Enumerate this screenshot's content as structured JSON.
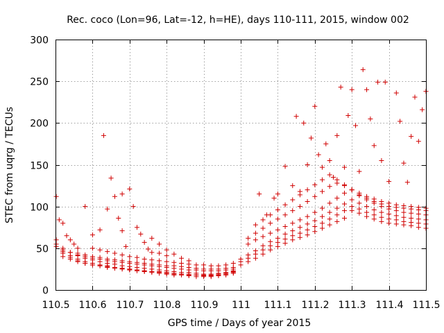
{
  "chart_data": {
    "type": "scatter",
    "title": "Rec. coco (Lon=96, Lat=-12, h=HE), days 110-111, 2015, window 002",
    "xlabel": "GPS time / Days of year 2015",
    "ylabel": "STEC from uqrg / TECUs",
    "xlim": [
      110.5,
      111.5
    ],
    "ylim": [
      0,
      300
    ],
    "grid": true,
    "marker": "plus",
    "series_color": "#d00000",
    "x_ticks": [
      "110.5",
      "110.6",
      "110.7",
      "110.8",
      "110.9",
      "111",
      "111.1",
      "111.2",
      "111.3",
      "111.4",
      "111.5"
    ],
    "y_ticks": [
      "0",
      "50",
      "100",
      "150",
      "200",
      "250",
      "300"
    ],
    "tracks": [
      {
        "x": [
          110.502,
          110.52,
          110.54,
          110.56,
          110.58,
          110.6,
          110.62,
          110.64,
          110.66,
          110.68,
          110.7,
          110.72,
          110.74,
          110.76,
          110.78,
          110.8,
          110.82,
          110.84,
          110.86,
          110.88,
          110.9,
          110.92,
          110.94,
          110.96,
          110.98
        ],
        "y": [
          60,
          50,
          45,
          41,
          38,
          36,
          34,
          32,
          31,
          29,
          28,
          27,
          26,
          25,
          24,
          23,
          22,
          21,
          21,
          20,
          19,
          19,
          20,
          21,
          23
        ]
      },
      {
        "x": [
          110.502,
          110.52,
          110.54,
          110.56,
          110.58,
          110.6,
          110.62,
          110.64,
          110.66,
          110.68,
          110.7,
          110.72,
          110.74,
          110.76,
          110.78,
          110.8,
          110.82,
          110.84,
          110.86,
          110.88,
          110.9,
          110.92,
          110.94,
          110.96,
          110.98
        ],
        "y": [
          55,
          46,
          41,
          37,
          34,
          32,
          30,
          29,
          27,
          26,
          25,
          24,
          23,
          22,
          21,
          20,
          19,
          19,
          18,
          18,
          17,
          17,
          18,
          19,
          21
        ]
      },
      {
        "x": [
          110.502,
          110.52,
          110.54,
          110.56,
          110.58,
          110.6,
          110.62,
          110.64,
          110.66,
          110.68,
          110.7,
          110.72,
          110.74,
          110.76,
          110.78,
          110.8,
          110.82,
          110.84,
          110.86,
          110.88,
          110.9,
          110.92,
          110.94,
          110.96,
          110.98
        ],
        "y": [
          52,
          44,
          39,
          35,
          32,
          30,
          29,
          27,
          26,
          25,
          24,
          23,
          22,
          21,
          20,
          19,
          18,
          18,
          17,
          16,
          16,
          16,
          17,
          18,
          20
        ]
      },
      {
        "x": [
          110.52,
          110.54,
          110.56,
          110.58,
          110.6,
          110.62,
          110.64,
          110.66,
          110.68,
          110.7,
          110.72,
          110.74,
          110.76,
          110.78,
          110.8,
          110.82,
          110.84,
          110.86,
          110.88,
          110.9,
          110.92,
          110.94,
          110.96,
          110.98
        ],
        "y": [
          40,
          37,
          34,
          32,
          30,
          29,
          28,
          27,
          26,
          25,
          24,
          23,
          22,
          22,
          21,
          20,
          19,
          19,
          18,
          18,
          18,
          19,
          20,
          22
        ]
      },
      {
        "x": [
          110.52,
          110.54,
          110.56,
          110.58,
          110.6,
          110.62,
          110.64,
          110.66,
          110.68,
          110.7,
          110.72,
          110.74,
          110.76,
          110.78,
          110.8,
          110.82,
          110.84,
          110.86,
          110.88,
          110.9,
          110.92,
          110.94,
          110.96,
          110.98
        ],
        "y": [
          48,
          45,
          42,
          40,
          38,
          37,
          35,
          34,
          33,
          32,
          31,
          30,
          29,
          28,
          27,
          26,
          25,
          24,
          24,
          23,
          23,
          23,
          24,
          25
        ]
      },
      {
        "x": [
          110.56,
          110.58,
          110.6,
          110.62,
          110.64,
          110.66,
          110.68,
          110.7,
          110.72,
          110.74,
          110.76,
          110.78,
          110.8,
          110.82,
          110.84,
          110.86,
          110.88,
          110.9,
          110.92,
          110.94,
          110.96,
          110.98
        ],
        "y": [
          44,
          42,
          40,
          39,
          37,
          36,
          35,
          34,
          33,
          32,
          31,
          30,
          29,
          29,
          28,
          27,
          26,
          25,
          25,
          25,
          26,
          27
        ]
      },
      {
        "x": [
          110.6,
          110.62,
          110.64,
          110.66,
          110.68,
          110.7,
          110.72,
          110.74,
          110.76,
          110.78,
          110.8,
          110.82,
          110.84,
          110.86,
          110.88,
          110.9,
          110.92,
          110.94,
          110.96,
          110.98
        ],
        "y": [
          50,
          48,
          46,
          44,
          42,
          40,
          39,
          37,
          36,
          35,
          34,
          33,
          32,
          31,
          30,
          30,
          29,
          29,
          30,
          32
        ]
      },
      {
        "x": [
          110.502,
          110.51,
          110.52,
          110.53,
          110.54,
          110.55,
          110.56
        ],
        "y": [
          112,
          84,
          80,
          65,
          60,
          55,
          50
        ]
      },
      {
        "x": [
          110.58,
          110.6,
          110.62,
          110.63,
          110.64,
          110.65,
          110.66,
          110.67,
          110.68
        ],
        "y": [
          100,
          66,
          72,
          185,
          97,
          134,
          112,
          86,
          71
        ]
      },
      {
        "x": [
          110.68,
          110.69,
          110.7,
          110.71,
          110.72,
          110.73,
          110.74,
          110.75,
          110.76,
          110.78,
          110.8
        ],
        "y": [
          115,
          52,
          121,
          100,
          75,
          67,
          57,
          49,
          45,
          44,
          41
        ]
      },
      {
        "x": [
          110.76,
          110.78,
          110.8,
          110.82,
          110.84,
          110.86
        ],
        "y": [
          62,
          55,
          48,
          43,
          38,
          35
        ]
      },
      {
        "x": [
          111.0,
          111.02,
          111.04,
          111.06,
          111.08,
          111.1,
          111.12,
          111.14,
          111.16,
          111.18,
          111.2,
          111.22,
          111.24,
          111.26,
          111.28,
          111.3,
          111.32,
          111.34,
          111.36,
          111.38,
          111.4,
          111.42,
          111.44,
          111.46,
          111.48,
          111.5
        ],
        "y": [
          30,
          34,
          38,
          43,
          48,
          52,
          56,
          60,
          63,
          66,
          70,
          74,
          78,
          82,
          86,
          95,
          92,
          88,
          85,
          82,
          80,
          79,
          78,
          77,
          75,
          74
        ]
      },
      {
        "x": [
          111.0,
          111.02,
          111.04,
          111.06,
          111.08,
          111.1,
          111.12,
          111.14,
          111.16,
          111.18,
          111.2,
          111.22,
          111.24,
          111.26,
          111.28,
          111.3,
          111.32,
          111.34,
          111.36,
          111.38,
          111.4,
          111.42,
          111.44,
          111.46,
          111.48,
          111.5
        ],
        "y": [
          34,
          38,
          43,
          48,
          53,
          57,
          61,
          65,
          68,
          72,
          76,
          80,
          85,
          90,
          95,
          100,
          97,
          93,
          90,
          87,
          85,
          84,
          82,
          81,
          80,
          79
        ]
      },
      {
        "x": [
          111.0,
          111.02,
          111.04,
          111.06,
          111.08,
          111.1,
          111.12,
          111.14,
          111.16,
          111.18,
          111.2,
          111.22,
          111.24,
          111.26,
          111.28,
          111.3,
          111.32,
          111.34,
          111.36,
          111.38,
          111.4,
          111.42,
          111.44,
          111.46,
          111.48,
          111.5
        ],
        "y": [
          37,
          42,
          47,
          53,
          58,
          62,
          67,
          71,
          75,
          79,
          83,
          88,
          93,
          98,
          103,
          108,
          104,
          100,
          96,
          93,
          91,
          89,
          87,
          86,
          85,
          84
        ]
      },
      {
        "x": [
          111.02,
          111.04,
          111.06,
          111.08,
          111.1,
          111.12,
          111.14,
          111.16,
          111.18,
          111.2,
          111.22,
          111.24,
          111.26,
          111.28,
          111.3,
          111.32,
          111.34,
          111.36,
          111.38,
          111.4,
          111.42,
          111.44,
          111.46,
          111.48,
          111.5
        ],
        "y": [
          55,
          60,
          64,
          68,
          72,
          76,
          80,
          84,
          88,
          93,
          98,
          104,
          110,
          116,
          120,
          113,
          108,
          104,
          100,
          97,
          95,
          93,
          92,
          91,
          90
        ]
      },
      {
        "x": [
          111.02,
          111.04,
          111.06,
          111.08,
          111.1,
          111.12,
          111.14,
          111.16,
          111.18,
          111.2,
          111.22,
          111.24,
          111.26,
          111.28,
          111.3,
          111.32,
          111.34,
          111.36,
          111.38,
          111.4,
          111.42,
          111.44,
          111.46,
          111.48,
          111.5
        ],
        "y": [
          62,
          68,
          74,
          80,
          85,
          90,
          95,
          100,
          106,
          112,
          118,
          124,
          128,
          125,
          120,
          114,
          110,
          106,
          103,
          100,
          99,
          98,
          97,
          96,
          95
        ]
      },
      {
        "x": [
          111.04,
          111.06,
          111.08,
          111.1,
          111.12,
          111.14,
          111.16,
          111.18,
          111.2,
          111.22,
          111.24,
          111.26,
          111.28,
          111.3,
          111.32,
          111.34,
          111.36,
          111.38,
          111.4,
          111.42,
          111.44,
          111.46,
          111.48,
          111.5
        ],
        "y": [
          78,
          84,
          90,
          96,
          102,
          108,
          114,
          120,
          126,
          132,
          138,
          132,
          126,
          120,
          116,
          112,
          109,
          106,
          104,
          102,
          101,
          100,
          99,
          98
        ]
      },
      {
        "x": [
          111.05,
          111.07,
          111.09,
          111.1,
          111.12,
          111.14,
          111.15,
          111.16,
          111.17,
          111.18,
          111.19,
          111.2,
          111.21,
          111.22,
          111.23,
          111.24,
          111.25,
          111.26,
          111.27,
          111.28
        ],
        "y": [
          115,
          90,
          110,
          115,
          148,
          125,
          208,
          118,
          200,
          150,
          182,
          220,
          162,
          147,
          175,
          155,
          135,
          185,
          243,
          147
        ]
      },
      {
        "x": [
          111.29,
          111.3,
          111.31,
          111.32,
          111.33,
          111.34,
          111.35,
          111.36,
          111.37,
          111.38,
          111.39,
          111.4,
          111.42,
          111.43,
          111.44,
          111.45,
          111.46,
          111.47,
          111.48,
          111.49,
          111.5
        ],
        "y": [
          209,
          240,
          197,
          142,
          264,
          240,
          205,
          173,
          249,
          155,
          249,
          130,
          236,
          202,
          152,
          129,
          184,
          231,
          178,
          216,
          238
        ]
      }
    ]
  }
}
